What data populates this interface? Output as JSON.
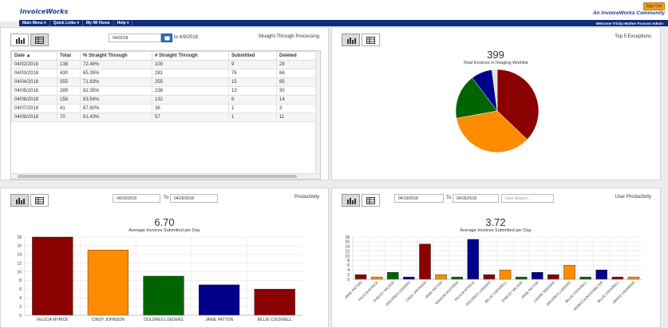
{
  "header": {
    "brand": "InvoiceWorks",
    "signout": "Sign Out",
    "community": "An InvoiceWorks Community",
    "nav": [
      "Main Menu ▾",
      "Quick Links ▾",
      "My IW Home",
      "Help ▾"
    ],
    "welcome": "Welcome Trinity Mother Frances Admin"
  },
  "stp": {
    "title": "Straight-Through Processing",
    "from_date": "04/02/18",
    "to_label": "to 4/9/2018",
    "columns": [
      "Date ▲",
      "Total",
      "% Straight Through",
      "# Straight Through",
      "Submitted",
      "Deleted"
    ],
    "rows": [
      [
        "04/02/2018",
        "138",
        "72.46%",
        "100",
        "9",
        "28"
      ],
      [
        "04/03/2018",
        "430",
        "65.35%",
        "281",
        "76",
        "66"
      ],
      [
        "04/04/2018",
        "355",
        "71.83%",
        "255",
        "15",
        "85"
      ],
      [
        "04/05/2018",
        "289",
        "82.35%",
        "238",
        "13",
        "30"
      ],
      [
        "04/06/2018",
        "158",
        "83.54%",
        "132",
        "8",
        "14"
      ],
      [
        "04/07/2018",
        "41",
        "87.80%",
        "36",
        "1",
        "3"
      ],
      [
        "04/09/2018",
        "70",
        "81.43%",
        "57",
        "1",
        "11"
      ]
    ]
  },
  "exceptions": {
    "title": "Top 5 Exceptions",
    "total": "399",
    "subtitle": "Total Invoices in Imaging Worklist"
  },
  "productivity": {
    "title": "Productivity",
    "from_date": "04/19/2018",
    "to_label": "To",
    "to_date": "04/26/2018",
    "value": "6.70",
    "subtitle": "Average Invoices Submitted per Day"
  },
  "user_productivity": {
    "title": "User Productivity",
    "from_date": "04/19/2018",
    "to_label": "To",
    "to_date": "04/26/2018",
    "search_placeholder": "User Search...",
    "value": "3.72",
    "subtitle": "Average Invoices Submitted per Day"
  },
  "colors": {
    "darkred": "#8b0000",
    "orange": "#ff8c00",
    "green": "#006400",
    "navy": "#00008b"
  },
  "chart_data": [
    {
      "type": "pie",
      "labels": [
        "",
        "",
        "",
        "",
        ""
      ],
      "values": [
        36,
        34,
        17,
        8,
        2
      ],
      "colors": [
        "#8b0000",
        "#ff8c00",
        "#006400",
        "#00008b",
        "#e0e0e0"
      ]
    },
    {
      "type": "bar",
      "categories": [
        "FELICIA MYRICK",
        "CINDY JOHNSON",
        "DOLORES LUEDERS",
        "JANIE PATTON",
        "BILLIE COCKRELL"
      ],
      "values": [
        18,
        15,
        9,
        7,
        6
      ],
      "colors": [
        "#8b0000",
        "#ff8c00",
        "#006400",
        "#00008b",
        "#8b0000"
      ],
      "yticks": [
        0,
        2,
        4,
        6,
        8,
        10,
        12,
        14,
        16,
        18
      ],
      "ylim": [
        0,
        18
      ]
    },
    {
      "type": "bar",
      "categories": [
        "JANIE PATTON",
        "FELICIA MYRICK",
        "SHIRLEY WILSON",
        "DOLORES LUEDERS",
        "CINDY JOHNSON",
        "JANIE PATTON",
        "IGNACIO ACEVEDO",
        "FELICIA MYRICK",
        "DOLORES LUEDERS",
        "BILLIE COCKRELL",
        "SHIRLEY WILSON",
        "JANIE PATTON",
        "CASSIE SIDDONS",
        "DOLORES LUEDERS",
        "BILLIE COCKRELL",
        "REBECCA BUCKWALTER",
        "BILLIE COCKRELL",
        "JANICE CROWDER"
      ],
      "values": [
        2,
        1,
        3,
        1,
        15,
        2,
        1,
        17,
        2,
        4,
        1,
        3,
        2,
        6,
        1,
        4,
        1,
        1
      ],
      "colors": [
        "#8b0000",
        "#ff8c00",
        "#006400",
        "#00008b",
        "#8b0000",
        "#ff8c00",
        "#006400",
        "#00008b",
        "#8b0000",
        "#ff8c00",
        "#006400",
        "#00008b",
        "#8b0000",
        "#ff8c00",
        "#006400",
        "#00008b",
        "#8b0000",
        "#ff8c00"
      ],
      "yticks": [
        0,
        2,
        4,
        6,
        8,
        10,
        12,
        14,
        16,
        18
      ],
      "ylim": [
        0,
        18
      ]
    }
  ]
}
